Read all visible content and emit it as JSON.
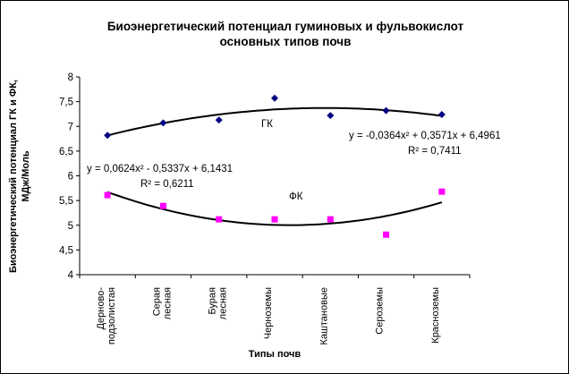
{
  "chart_data": {
    "type": "scatter",
    "title_lines": [
      "Биоэнергетический потенциал гуминовых и фульвокислот",
      "основных типов почв"
    ],
    "xlabel": "Типы почв",
    "ylabel_lines": [
      "Биоэнергетический потенциал ГК и ФК,",
      "МДж/Моль"
    ],
    "ylim": [
      4,
      8
    ],
    "yticks": [
      "4",
      "4,5",
      "5",
      "5,5",
      "6",
      "6,5",
      "7",
      "7,5",
      "8"
    ],
    "categories": [
      [
        "Дерново-",
        "подзолистая"
      ],
      [
        "Серая",
        "лесная"
      ],
      [
        "Бурая",
        "лесная"
      ],
      [
        "Черноземы"
      ],
      [
        "Каштановые"
      ],
      [
        "Сероземы"
      ],
      [
        "Красноземы"
      ]
    ],
    "series": [
      {
        "name": "ГК",
        "marker": "diamond",
        "color": "#000080",
        "values": [
          6.82,
          7.07,
          7.13,
          7.57,
          7.22,
          7.32,
          7.24
        ],
        "trendline": {
          "type": "poly2",
          "coef": [
            -0.0364,
            0.3571,
            6.4961
          ]
        },
        "equation": "y = -0,0364x² + 0,3571x + 6,4961",
        "r2": "R² = 0,7411"
      },
      {
        "name": "ФК",
        "marker": "square",
        "color": "#ff00ff",
        "values": [
          5.61,
          5.39,
          5.12,
          5.12,
          5.12,
          4.81,
          5.68
        ],
        "trendline": {
          "type": "poly2",
          "coef": [
            0.0624,
            -0.5337,
            6.1431
          ]
        },
        "equation": "y = 0,0624x² - 0,5337x + 6,1431",
        "r2": "R² = 0,6211"
      }
    ],
    "grid": false,
    "legend": "none"
  }
}
